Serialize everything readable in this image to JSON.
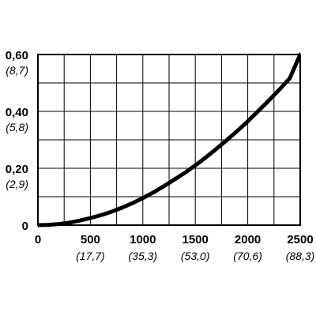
{
  "chart_data": {
    "type": "line",
    "title": "",
    "xlabel": "",
    "ylabel": "",
    "xlim": [
      0,
      2500
    ],
    "ylim": [
      0,
      0.6
    ],
    "grid": true,
    "x_ticks": [
      {
        "value": 0,
        "label": "0",
        "sublabel": ""
      },
      {
        "value": 500,
        "label": "500",
        "sublabel": "(17,7)"
      },
      {
        "value": 1000,
        "label": "1000",
        "sublabel": "(35,3)"
      },
      {
        "value": 1500,
        "label": "1500",
        "sublabel": "(53,0)"
      },
      {
        "value": 2000,
        "label": "2000",
        "sublabel": "(70,6)"
      },
      {
        "value": 2500,
        "label": "2500",
        "sublabel": "(88,3)"
      }
    ],
    "y_ticks": [
      {
        "value": 0,
        "label": "0",
        "sublabel": ""
      },
      {
        "value": 0.2,
        "label": "0,20",
        "sublabel": "(2,9)"
      },
      {
        "value": 0.4,
        "label": "0,40",
        "sublabel": "(5,8)"
      },
      {
        "value": 0.6,
        "label": "0,60",
        "sublabel": "(8,7)"
      }
    ],
    "series": [
      {
        "x": [
          0,
          100,
          200,
          300,
          400,
          500,
          600,
          700,
          800,
          900,
          1000,
          1100,
          1200,
          1300,
          1400,
          1500,
          1600,
          1700,
          1800,
          1900,
          2000,
          2100,
          2200,
          2300,
          2400,
          2500
        ],
        "y": [
          0,
          0.001,
          0.004,
          0.009,
          0.016,
          0.025,
          0.035,
          0.047,
          0.061,
          0.077,
          0.095,
          0.115,
          0.137,
          0.16,
          0.184,
          0.21,
          0.238,
          0.268,
          0.299,
          0.331,
          0.365,
          0.401,
          0.438,
          0.476,
          0.516,
          0.6
        ]
      }
    ]
  }
}
